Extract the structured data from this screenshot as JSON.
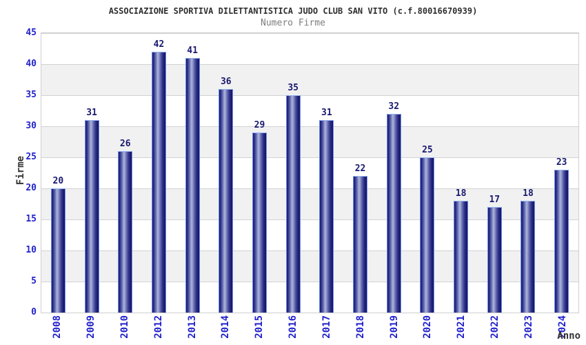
{
  "chart_data": {
    "type": "bar",
    "title": "ASSOCIAZIONE SPORTIVA DILETTANTISTICA JUDO CLUB SAN VITO (c.f.80016670939)",
    "subtitle": "Numero Firme",
    "xlabel": "Anno",
    "ylabel": "Firme",
    "categories": [
      "2008",
      "2009",
      "2010",
      "2012",
      "2013",
      "2014",
      "2015",
      "2016",
      "2017",
      "2018",
      "2019",
      "2020",
      "2021",
      "2022",
      "2023",
      "2024"
    ],
    "values": [
      20,
      31,
      26,
      42,
      41,
      36,
      29,
      35,
      31,
      22,
      32,
      25,
      18,
      17,
      18,
      23
    ],
    "ylim": [
      0,
      45
    ],
    "yticks": [
      0,
      5,
      10,
      15,
      20,
      25,
      30,
      35,
      40,
      45
    ],
    "grid": true,
    "legend_position": "none",
    "colors": {
      "axis_tick_text": "#2222cc",
      "value_label_text": "#191970",
      "bar_dark": "#1b1b6e",
      "bar_highlight": "#aab3da",
      "bar_outline": "#6c8fe8",
      "title_text": "#2e2e2e",
      "subtitle_text": "#7d7d7d",
      "band_stripe": "#f1f1f1",
      "gridline": "#d2d2d2"
    }
  }
}
